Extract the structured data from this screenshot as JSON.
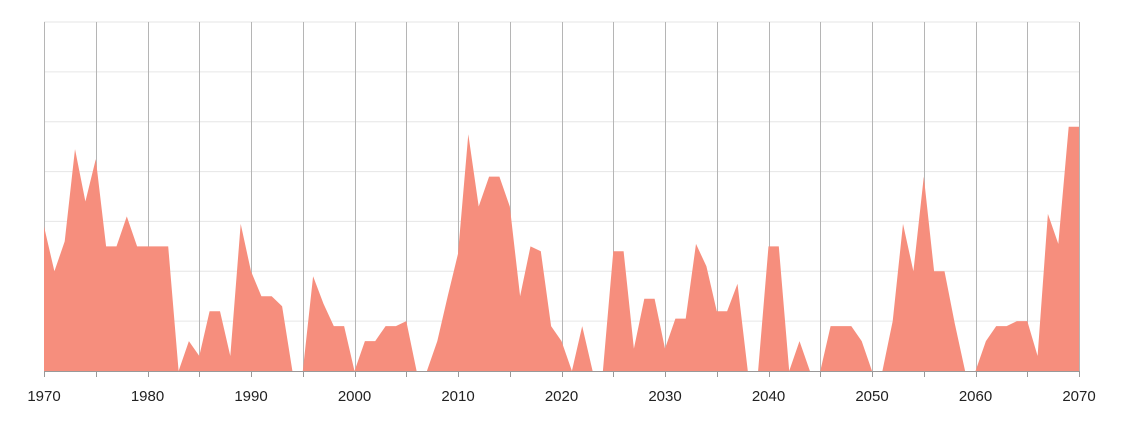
{
  "chart_data": {
    "type": "area",
    "title": "",
    "xlabel": "",
    "ylabel": "",
    "xlim": [
      1970,
      2070
    ],
    "ylim": [
      0,
      7
    ],
    "grid": true,
    "x_tick_labels": [
      "1970",
      "1980",
      "1990",
      "2000",
      "2010",
      "2020",
      "2030",
      "2040",
      "2050",
      "2060",
      "2070"
    ],
    "fill_color": "#f68e7d",
    "x": [
      1970,
      1971,
      1972,
      1973,
      1974,
      1975,
      1976,
      1977,
      1978,
      1979,
      1980,
      1981,
      1982,
      1983,
      1984,
      1985,
      1986,
      1987,
      1988,
      1989,
      1990,
      1991,
      1992,
      1993,
      1994,
      1995,
      1996,
      1997,
      1998,
      1999,
      2000,
      2001,
      2002,
      2003,
      2004,
      2005,
      2006,
      2007,
      2008,
      2009,
      2010,
      2011,
      2012,
      2013,
      2014,
      2015,
      2016,
      2017,
      2018,
      2019,
      2020,
      2021,
      2022,
      2023,
      2024,
      2025,
      2026,
      2027,
      2028,
      2029,
      2030,
      2031,
      2032,
      2033,
      2034,
      2035,
      2036,
      2037,
      2038,
      2039,
      2040,
      2041,
      2042,
      2043,
      2044,
      2045,
      2046,
      2047,
      2048,
      2049,
      2050,
      2051,
      2052,
      2053,
      2054,
      2055,
      2056,
      2057,
      2058,
      2059,
      2060,
      2061,
      2062,
      2063,
      2064,
      2065,
      2066,
      2067,
      2068,
      2069,
      2070
    ],
    "values": [
      2.9,
      2.0,
      2.6,
      4.45,
      3.4,
      4.25,
      2.5,
      2.5,
      3.1,
      2.5,
      2.5,
      2.5,
      2.5,
      0,
      0.6,
      0.3,
      1.2,
      1.2,
      0.3,
      2.95,
      2.0,
      1.5,
      1.5,
      1.3,
      0,
      0,
      1.9,
      1.35,
      0.9,
      0.9,
      0,
      0.6,
      0.6,
      0.9,
      0.9,
      1.0,
      0,
      0,
      0.6,
      1.5,
      2.35,
      4.75,
      3.3,
      3.9,
      3.9,
      3.3,
      1.5,
      2.5,
      2.4,
      0.9,
      0.6,
      0,
      0.9,
      0,
      0,
      2.4,
      2.4,
      0.45,
      1.45,
      1.45,
      0.45,
      1.05,
      1.05,
      2.55,
      2.1,
      1.2,
      1.2,
      1.75,
      0,
      0,
      2.5,
      2.5,
      0,
      0.6,
      0,
      0,
      0.9,
      0.9,
      0.9,
      0.6,
      0,
      0,
      1.0,
      2.95,
      2.0,
      3.9,
      2.0,
      2.0,
      0.95,
      0,
      0,
      0.6,
      0.9,
      0.9,
      1.0,
      1.0,
      0.3,
      3.15,
      2.55,
      4.9,
      4.9
    ]
  }
}
